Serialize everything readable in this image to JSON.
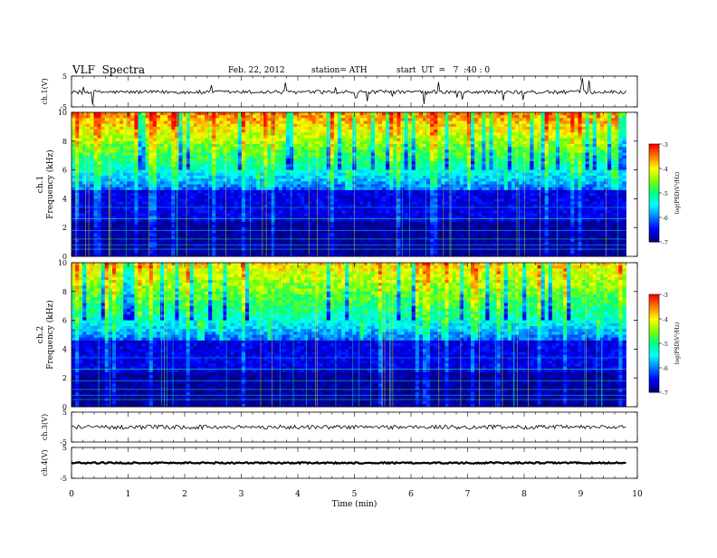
{
  "header": {
    "title": "VLF  Spectra",
    "date": "Feb. 22, 2012",
    "station": "station= ATH",
    "start": "start  UT  =   7  :40 : 0"
  },
  "colorbar": {
    "label": "log(PSD(V²/Hz)",
    "ticks": [
      "-3",
      "-4",
      "-5",
      "-6",
      "-7"
    ],
    "colors": [
      "#000080",
      "#0000ff",
      "#0080ff",
      "#00ffff",
      "#00ff80",
      "#80ff00",
      "#ffff00",
      "#ff8000",
      "#ff0000"
    ]
  },
  "chart_data": [
    {
      "type": "line",
      "name": "ch1-waveform",
      "ylabel": "ch.1(V)",
      "ylim": [
        -5,
        5
      ],
      "y_ticks": [
        "5",
        "-5"
      ],
      "xlim": [
        0,
        10
      ],
      "baseline": 0,
      "note_values": "noisy waveform around 0 V with spikes up to about ±5 V"
    },
    {
      "type": "heatmap",
      "name": "ch1-spectrogram",
      "ylabel": "ch.1 Frequency  (kHz)",
      "ylim": [
        0,
        10
      ],
      "y_ticks": [
        "0",
        "2",
        "4",
        "6",
        "8",
        "10"
      ],
      "xlim": [
        0,
        10
      ],
      "value_range": [
        -7,
        -3
      ],
      "data_end_minute": 9.8
    },
    {
      "type": "heatmap",
      "name": "ch2-spectrogram",
      "ylabel": "ch.2 Frequency  (kHz)",
      "ylim": [
        0,
        10
      ],
      "y_ticks": [
        "0",
        "2",
        "4",
        "6",
        "8",
        "10"
      ],
      "xlim": [
        0,
        10
      ],
      "value_range": [
        -7,
        -3
      ],
      "data_end_minute": 9.8
    },
    {
      "type": "line",
      "name": "ch3-waveform",
      "ylabel": "ch.3(V)",
      "ylim": [
        -5,
        5
      ],
      "y_ticks": [
        "5",
        "-5"
      ],
      "xlim": [
        0,
        10
      ]
    },
    {
      "type": "line",
      "name": "ch4-waveform",
      "ylabel": "ch.4(V)",
      "ylim": [
        -5,
        5
      ],
      "y_ticks": [
        "5",
        "-5"
      ],
      "xlim": [
        0,
        10
      ]
    }
  ],
  "xaxis": {
    "label": "Time  (min)",
    "ticks": [
      "0",
      "1",
      "2",
      "3",
      "4",
      "5",
      "6",
      "7",
      "8",
      "9",
      "10"
    ]
  }
}
